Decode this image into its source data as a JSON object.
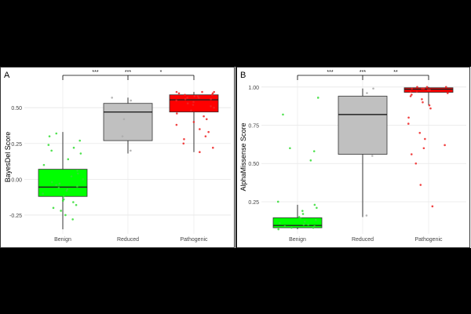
{
  "figure": {
    "background": "#000000",
    "panel_background": "#ffffff"
  },
  "chart_data": [
    {
      "type": "box",
      "panel_label": "A",
      "title": "",
      "xlabel": "",
      "ylabel": "BayesDel Score",
      "categories": [
        "Benign",
        "Reduced",
        "Pathogenic"
      ],
      "ylim": [
        -0.36,
        0.66
      ],
      "yticks": [
        -0.25,
        0.0,
        0.25,
        0.5
      ],
      "ytick_labels": [
        "-0.25",
        "0.00",
        "0.25",
        "0.50"
      ],
      "grid": true,
      "colors": [
        "#00ff00",
        "#c0c0c0",
        "#ff0000"
      ],
      "point_colors": [
        "#33dd33",
        "#aaaaaa",
        "#ee2222"
      ],
      "boxes": [
        {
          "min": -0.35,
          "q1": -0.12,
          "median": -0.055,
          "q3": 0.07,
          "max": 0.33
        },
        {
          "min": 0.18,
          "q1": 0.27,
          "median": 0.47,
          "q3": 0.53,
          "max": 0.57
        },
        {
          "min": 0.19,
          "q1": 0.47,
          "median": 0.555,
          "q3": 0.59,
          "max": 0.61
        }
      ],
      "points": [
        [
          -0.28,
          -0.25,
          -0.22,
          -0.2,
          -0.18,
          -0.16,
          -0.15,
          -0.14,
          -0.12,
          -0.1,
          -0.08,
          -0.07,
          -0.06,
          -0.05,
          -0.04,
          -0.03,
          -0.02,
          0.0,
          0.02,
          0.04,
          0.06,
          0.1,
          0.14,
          0.18,
          0.2,
          0.22,
          0.24,
          0.27,
          0.3,
          0.32
        ],
        [
          0.2,
          0.3,
          0.42,
          0.55,
          0.57
        ],
        [
          0.19,
          0.22,
          0.25,
          0.28,
          0.3,
          0.33,
          0.35,
          0.38,
          0.4,
          0.42,
          0.44,
          0.46,
          0.48,
          0.5,
          0.51,
          0.52,
          0.53,
          0.54,
          0.55,
          0.56,
          0.56,
          0.57,
          0.57,
          0.58,
          0.58,
          0.59,
          0.59,
          0.6,
          0.6,
          0.61,
          0.61,
          0.61
        ]
      ],
      "significance": {
        "labels": [
          "***",
          "***",
          "*"
        ]
      }
    },
    {
      "type": "box",
      "panel_label": "B",
      "title": "",
      "xlabel": "",
      "ylabel": "AlphaMissense Score",
      "categories": [
        "Benign",
        "Reduced",
        "Pathogenic"
      ],
      "ylim": [
        0.06,
        1.04
      ],
      "yticks": [
        0.25,
        0.5,
        0.75,
        1.0
      ],
      "ytick_labels": [
        "0.25",
        "0.50",
        "0.75",
        "1.00"
      ],
      "grid": true,
      "colors": [
        "#00ff00",
        "#c0c0c0",
        "#ff0000"
      ],
      "point_colors": [
        "#33dd33",
        "#aaaaaa",
        "#ee2222"
      ],
      "boxes": [
        {
          "min": 0.07,
          "q1": 0.08,
          "median": 0.095,
          "q3": 0.145,
          "max": 0.23
        },
        {
          "min": 0.15,
          "q1": 0.56,
          "median": 0.82,
          "q3": 0.94,
          "max": 0.99
        },
        {
          "min": 0.88,
          "q1": 0.965,
          "median": 0.985,
          "q3": 0.995,
          "max": 1.0
        }
      ],
      "points": [
        [
          0.07,
          0.08,
          0.08,
          0.09,
          0.09,
          0.1,
          0.1,
          0.11,
          0.12,
          0.13,
          0.14,
          0.15,
          0.17,
          0.19,
          0.21,
          0.23,
          0.25,
          0.52,
          0.58,
          0.6,
          0.82,
          0.93
        ],
        [
          0.16,
          0.55,
          0.96,
          0.99
        ],
        [
          0.22,
          0.36,
          0.5,
          0.56,
          0.6,
          0.62,
          0.66,
          0.7,
          0.76,
          0.8,
          0.86,
          0.88,
          0.9,
          0.92,
          0.94,
          0.95,
          0.96,
          0.97,
          0.97,
          0.98,
          0.98,
          0.99,
          0.99,
          0.99,
          1.0,
          1.0,
          1.0
        ]
      ],
      "significance": {
        "labels": [
          "***",
          "***",
          "**"
        ]
      }
    }
  ]
}
